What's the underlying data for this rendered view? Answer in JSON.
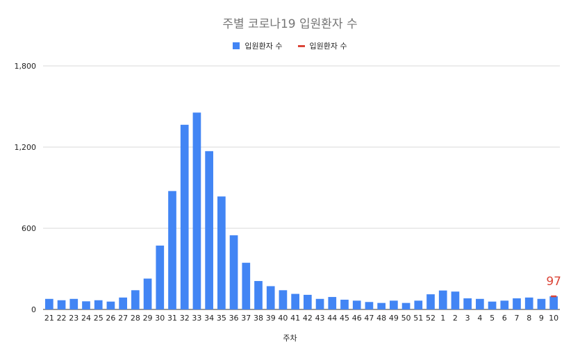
{
  "chart_data": {
    "type": "bar",
    "title": "주별 코로나19 입원환자 수",
    "xlabel": "주차",
    "ylabel": "",
    "ylim": [
      0,
      1800
    ],
    "yticks": [
      0,
      600,
      1200,
      1800
    ],
    "ytick_labels": [
      "0",
      "600",
      "1,200",
      "1,800"
    ],
    "grid": true,
    "legend_position": "top",
    "categories": [
      "21",
      "22",
      "23",
      "24",
      "25",
      "26",
      "27",
      "28",
      "29",
      "30",
      "31",
      "32",
      "33",
      "34",
      "35",
      "36",
      "37",
      "38",
      "39",
      "40",
      "41",
      "42",
      "43",
      "44",
      "45",
      "46",
      "47",
      "48",
      "49",
      "50",
      "51",
      "52",
      "1",
      "2",
      "3",
      "4",
      "5",
      "6",
      "7",
      "8",
      "9",
      "10"
    ],
    "series": [
      {
        "name": "입원환자 수",
        "color": "#4285f4",
        "values": [
          78,
          68,
          78,
          60,
          68,
          58,
          88,
          142,
          228,
          472,
          875,
          1365,
          1455,
          1170,
          835,
          548,
          345,
          210,
          172,
          142,
          115,
          108,
          78,
          92,
          72,
          65,
          55,
          48,
          65,
          48,
          65,
          112,
          140,
          132,
          82,
          78,
          58,
          65,
          82,
          88,
          78,
          97
        ]
      },
      {
        "name": "입원환자 수",
        "color": "#db4437",
        "points": [
          {
            "x": "10",
            "y": 97
          }
        ],
        "annotation": "97"
      }
    ]
  }
}
